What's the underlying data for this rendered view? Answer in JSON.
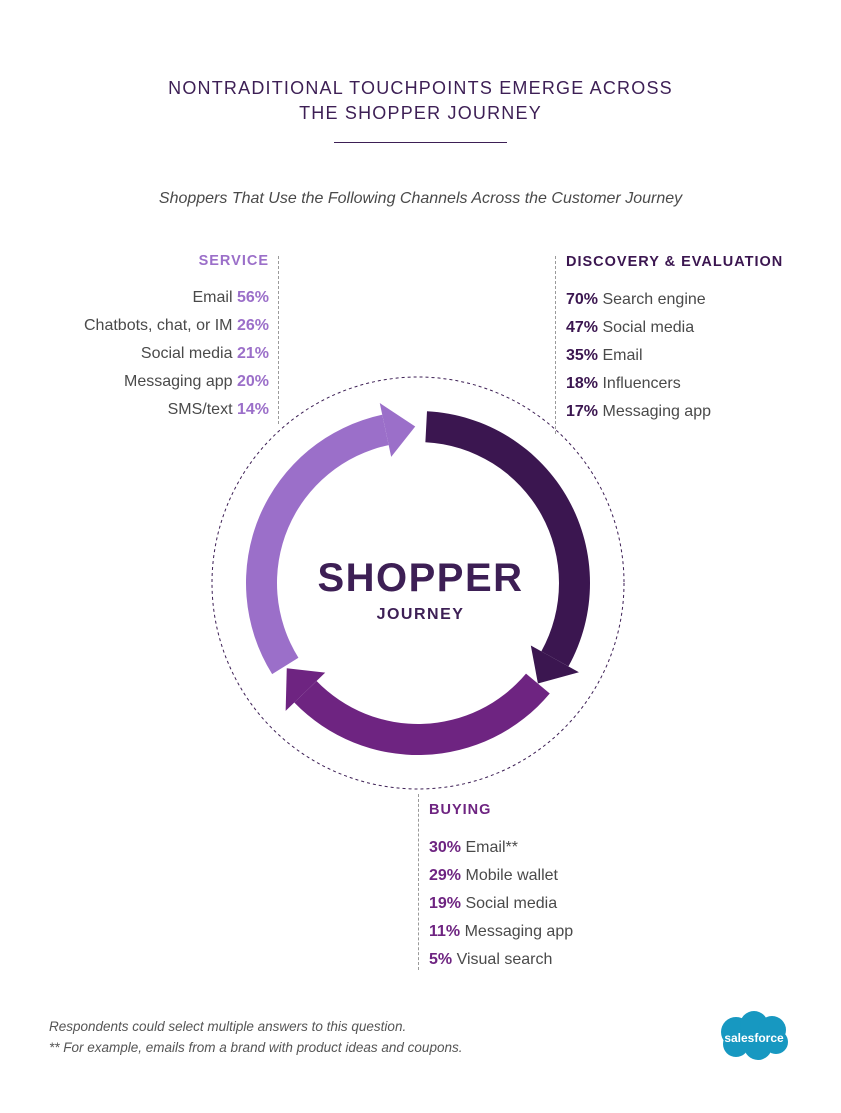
{
  "header": {
    "title_line1": "NONTRADITIONAL TOUCHPOINTS EMERGE ACROSS",
    "title_line2": "THE SHOPPER JOURNEY",
    "subtitle": "Shoppers That Use the Following Channels Across the Customer Journey"
  },
  "service": {
    "heading": "SERVICE",
    "items": [
      {
        "label": "Email",
        "pct": "56%"
      },
      {
        "label": "Chatbots, chat, or IM",
        "pct": "26%"
      },
      {
        "label": "Social media",
        "pct": "21%"
      },
      {
        "label": "Messaging app",
        "pct": "20%"
      },
      {
        "label": "SMS/text",
        "pct": "14%"
      }
    ]
  },
  "discovery": {
    "heading": "DISCOVERY & EVALUATION",
    "items": [
      {
        "pct": "70%",
        "label": "Search engine"
      },
      {
        "pct": "47%",
        "label": "Social media"
      },
      {
        "pct": "35%",
        "label": "Email"
      },
      {
        "pct": "18%",
        "label": "Influencers"
      },
      {
        "pct": "17%",
        "label": "Messaging app"
      }
    ]
  },
  "buying": {
    "heading": "BUYING",
    "items": [
      {
        "pct": "30%",
        "label": "Email**"
      },
      {
        "pct": "29%",
        "label": "Mobile wallet"
      },
      {
        "pct": "19%",
        "label": "Social media"
      },
      {
        "pct": "11%",
        "label": "Messaging app"
      },
      {
        "pct": "5%",
        "label": "Visual search"
      }
    ]
  },
  "center": {
    "big": "SHOPPER",
    "small": "JOURNEY"
  },
  "footnotes": {
    "line1": "Respondents could select multiple answers to this question.",
    "line2": "** For example, emails from a brand with product ideas and coupons."
  },
  "logo": {
    "text": "salesforce",
    "color": "#1798c1"
  },
  "colors": {
    "service": "#9b6fc9",
    "discovery": "#3b1650",
    "buying": "#6e2481"
  }
}
